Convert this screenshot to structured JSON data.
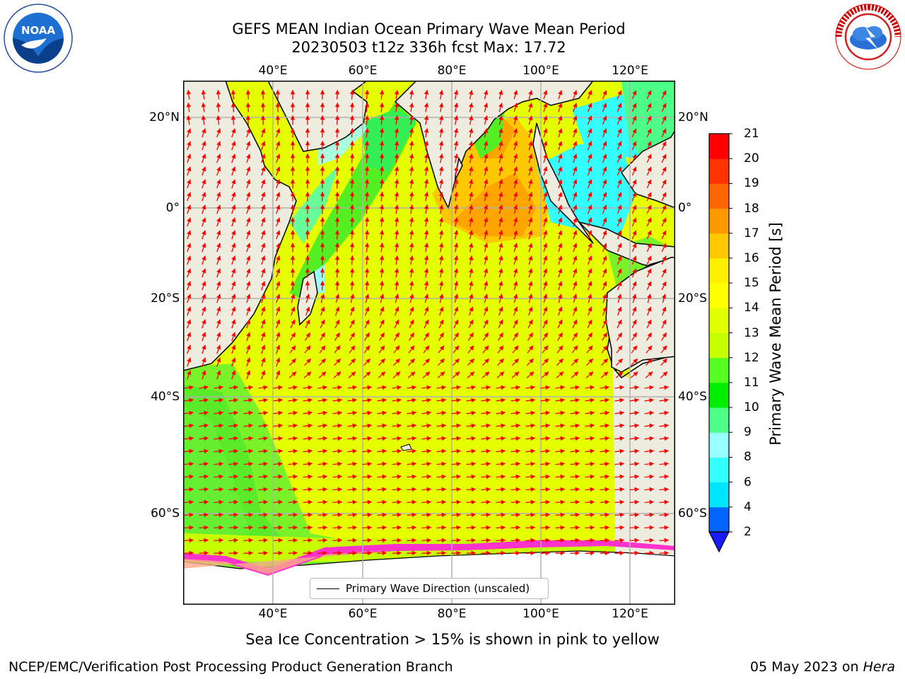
{
  "title": {
    "line1": "GEFS MEAN Indian Ocean Primary Wave Mean Period",
    "line2": "20230503 t12z 336h fcst   Max: 17.72"
  },
  "logos": {
    "left": {
      "text": "NOAA",
      "ring_text": "NATIONAL OCEANIC AND ATMOSPHERIC ADMINISTRATION · U.S. DEPARTMENT OF COMMERCE"
    },
    "right": {
      "ring_text": "NATIONAL WEATHER SERVICE"
    }
  },
  "map": {
    "lon_labels": [
      "40°E",
      "60°E",
      "80°E",
      "100°E",
      "120°E"
    ],
    "lat_labels": [
      "20°N",
      "0°",
      "20°S",
      "40°S",
      "60°S"
    ],
    "legend_label": "Primary Wave Direction (unscaled)",
    "vector_color": "#ff0000",
    "land_color": "#eeecde",
    "ice_colors": [
      "#ff33cc",
      "#ff88cc",
      "#ffcc66",
      "#ffff66"
    ]
  },
  "colorbar": {
    "label": "Primary Wave Mean Period [s]",
    "ticks": [
      "2",
      "4",
      "6",
      "8",
      "9",
      "10",
      "11",
      "12",
      "13",
      "14",
      "15",
      "16",
      "17",
      "18",
      "19",
      "20",
      "21"
    ],
    "colors": [
      "#0066ff",
      "#00e5ff",
      "#33ffff",
      "#99ffff",
      "#4dff88",
      "#00ee00",
      "#55ff22",
      "#c8ff00",
      "#e0ff00",
      "#ffff00",
      "#fff000",
      "#ffc800",
      "#ff9900",
      "#ff6600",
      "#ff3300",
      "#ff0000"
    ],
    "under_color": "#1a1aff"
  },
  "caption": "Sea Ice Concentration > 15% is shown in pink to yellow",
  "footer": {
    "left": "NCEP/EMC/Verification Post Processing Product Generation Branch",
    "date": "05 May 2023 on ",
    "machine": "Hera"
  }
}
